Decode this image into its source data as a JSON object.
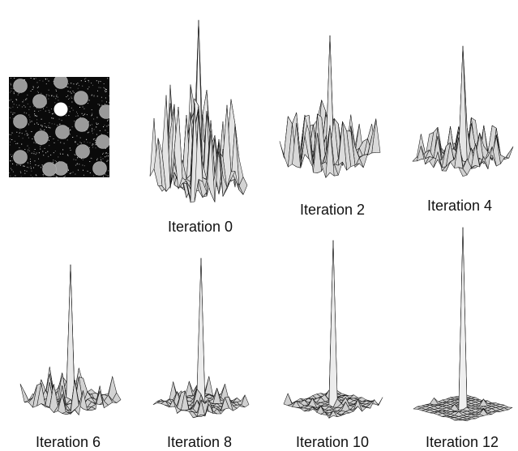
{
  "figure": {
    "panels": [
      {
        "id": "it0",
        "label": "Iteration 0"
      },
      {
        "id": "it2",
        "label": "Iteration 2"
      },
      {
        "id": "it4",
        "label": "Iteration 4"
      },
      {
        "id": "it6",
        "label": "Iteration 6"
      },
      {
        "id": "it8",
        "label": "Iteration 8"
      },
      {
        "id": "it10",
        "label": "Iteration 10"
      },
      {
        "id": "it12",
        "label": "Iteration 12"
      }
    ]
  }
}
